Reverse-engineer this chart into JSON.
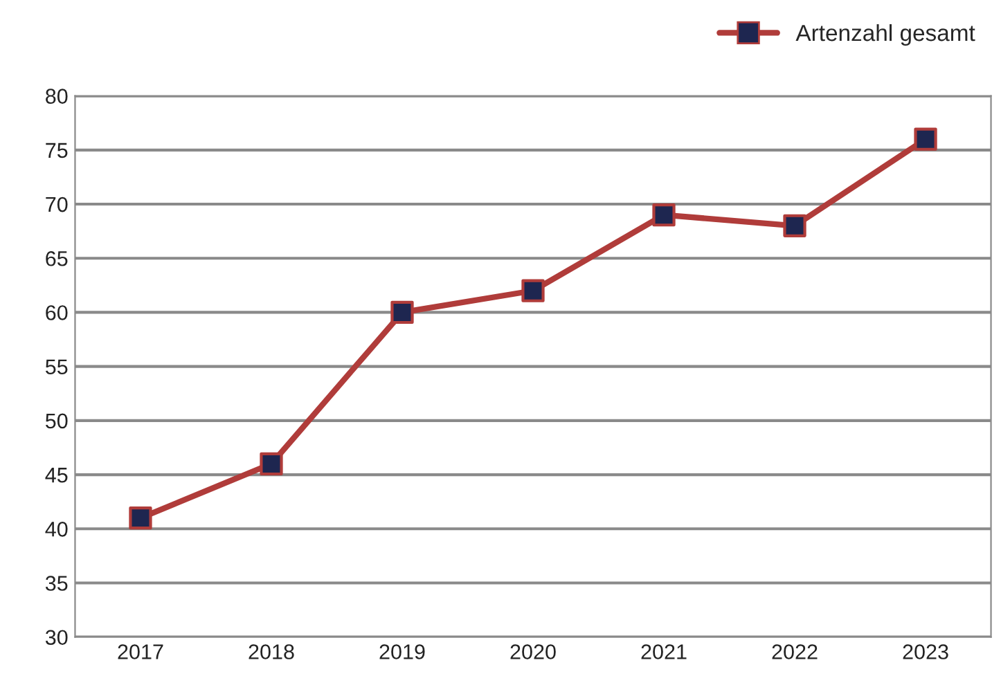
{
  "chart_data": {
    "type": "line",
    "categories": [
      "2017",
      "2018",
      "2019",
      "2020",
      "2021",
      "2022",
      "2023"
    ],
    "series": [
      {
        "name": "Artenzahl gesamt",
        "color": "#b03c3a",
        "colors": [
          "#1e2650",
          "#1e2650",
          "#1e2650",
          "#1e2650",
          "#1e2650",
          "#1e2650",
          "#1e2650"
        ],
        "values": [
          41,
          46,
          60,
          62,
          69,
          68,
          76
        ]
      }
    ],
    "ylim": [
      30,
      80
    ],
    "yticks": [
      30,
      35,
      40,
      45,
      50,
      55,
      60,
      65,
      70,
      75,
      80
    ],
    "grid": "y",
    "legend": "top right",
    "marker": "square",
    "line_style": "solid"
  }
}
